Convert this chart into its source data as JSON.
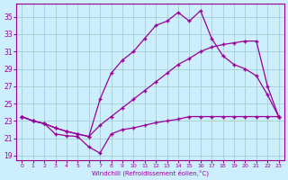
{
  "xlabel": "Windchill (Refroidissement éolien,°C)",
  "bg_color": "#cceeff",
  "grid_color": "#aad4d4",
  "line_color": "#990099",
  "xlim": [
    -0.5,
    23.5
  ],
  "ylim": [
    18.5,
    36.5
  ],
  "yticks": [
    19,
    21,
    23,
    25,
    27,
    29,
    31,
    33,
    35
  ],
  "xticks": [
    0,
    1,
    2,
    3,
    4,
    5,
    6,
    7,
    8,
    9,
    10,
    11,
    12,
    13,
    14,
    15,
    16,
    17,
    18,
    19,
    20,
    21,
    22,
    23
  ],
  "s1x": [
    0,
    1,
    2,
    3,
    4,
    5,
    6,
    7,
    8,
    9,
    10,
    11,
    12,
    13,
    14,
    15,
    16,
    17,
    18,
    19,
    20,
    21,
    22,
    23
  ],
  "s1y": [
    23.5,
    23.0,
    22.7,
    21.5,
    21.3,
    21.2,
    20.0,
    19.3,
    21.5,
    22.0,
    22.2,
    22.5,
    22.8,
    23.0,
    23.2,
    23.5,
    23.5,
    23.5,
    23.5,
    23.5,
    23.5,
    23.5,
    23.5,
    23.5
  ],
  "s2x": [
    0,
    1,
    2,
    3,
    4,
    5,
    6,
    7,
    8,
    9,
    10,
    11,
    12,
    13,
    14,
    15,
    16,
    17,
    18,
    19,
    20,
    21,
    22,
    23
  ],
  "s2y": [
    23.5,
    23.0,
    22.7,
    22.2,
    21.8,
    21.5,
    21.2,
    25.5,
    28.5,
    30.0,
    31.0,
    32.5,
    34.0,
    34.5,
    35.5,
    34.5,
    35.7,
    32.5,
    30.5,
    29.5,
    29.0,
    28.2,
    26.0,
    23.5
  ],
  "s3x": [
    0,
    1,
    2,
    3,
    4,
    5,
    6,
    7,
    8,
    9,
    10,
    11,
    12,
    13,
    14,
    15,
    16,
    17,
    18,
    19,
    20,
    21,
    22,
    23
  ],
  "s3y": [
    23.5,
    23.0,
    22.7,
    22.2,
    21.8,
    21.5,
    21.2,
    22.5,
    23.5,
    24.5,
    25.5,
    26.5,
    27.5,
    28.5,
    29.5,
    30.2,
    31.0,
    31.5,
    31.8,
    32.0,
    32.2,
    32.2,
    27.0,
    23.5
  ]
}
